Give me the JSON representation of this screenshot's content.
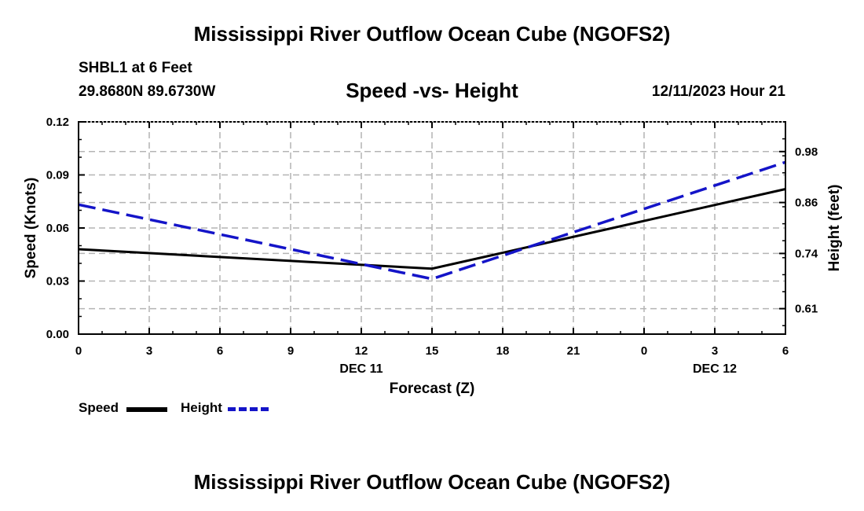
{
  "header": {
    "title": "Mississippi River Outflow Ocean Cube (NGOFS2)",
    "station": "SHBL1 at 6 Feet",
    "coordinates": "29.8680N  89.6730W",
    "subtitle": "Speed -vs- Height",
    "datetime": "12/11/2023 Hour 21"
  },
  "footer": {
    "title": "Mississippi River Outflow Ocean Cube (NGOFS2)"
  },
  "chart_data": {
    "type": "line",
    "title": "Speed -vs- Height",
    "xlabel": "Forecast (Z)",
    "ylabel": "Speed (Knots)",
    "y2label": "Height (feet)",
    "x": [
      0,
      15,
      30
    ],
    "x_ticks": [
      "0",
      "3",
      "6",
      "9",
      "12",
      "15",
      "18",
      "21",
      "0",
      "3",
      "6"
    ],
    "date_labels": [
      {
        "label": "DEC 11",
        "at_tick": 4
      },
      {
        "label": "DEC 12",
        "at_tick": 9
      }
    ],
    "xlim": [
      0,
      30
    ],
    "ylim": [
      0,
      0.12
    ],
    "y_ticks": [
      "0.00",
      "0.03",
      "0.06",
      "0.09",
      "0.12"
    ],
    "y2lim": [
      0.55,
      1.05
    ],
    "y2_ticks": [
      "0.61",
      "0.74",
      "0.86",
      "0.98"
    ],
    "grid": true,
    "series": [
      {
        "name": "Speed",
        "axis": "left",
        "color": "#000000",
        "style": "solid",
        "values": [
          0.048,
          0.037,
          0.082
        ]
      },
      {
        "name": "Height",
        "axis": "right",
        "color": "#1414c8",
        "style": "dashed",
        "values": [
          0.855,
          0.68,
          0.955
        ]
      }
    ],
    "legend": [
      {
        "label": "Speed",
        "color": "#000000",
        "style": "solid"
      },
      {
        "label": "Height",
        "color": "#1414c8",
        "style": "dashed"
      }
    ]
  }
}
